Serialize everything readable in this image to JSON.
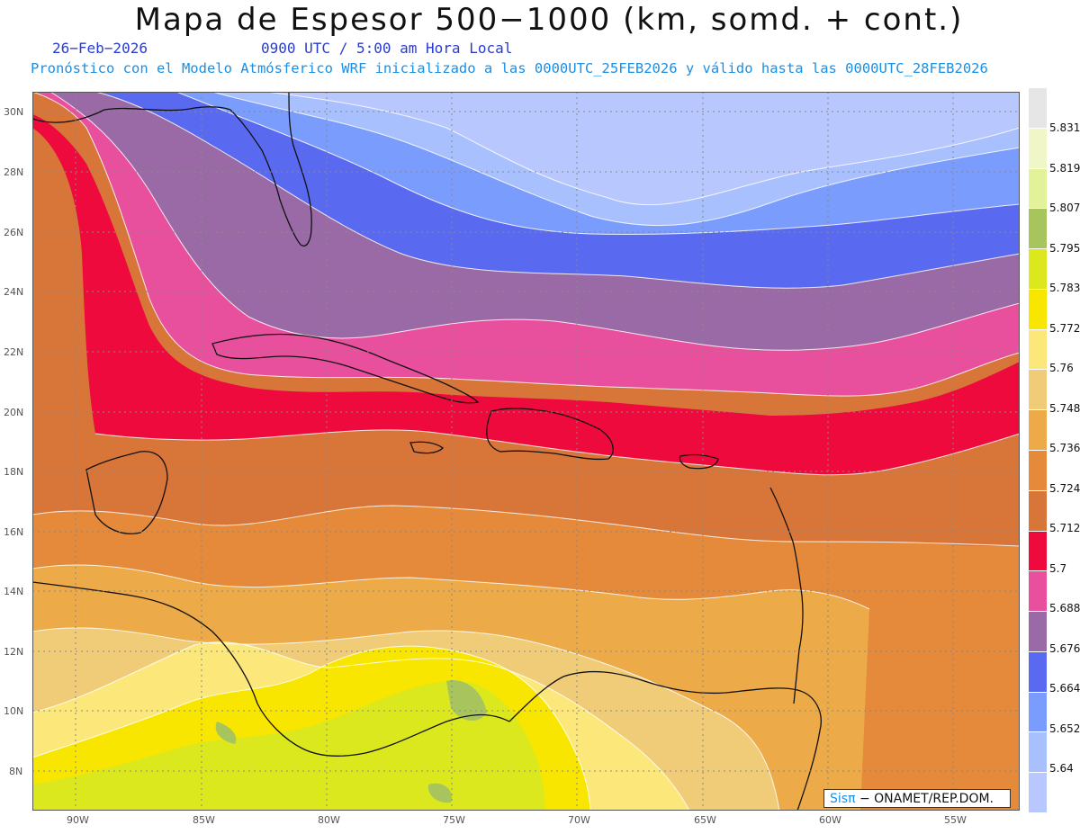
{
  "title": "Mapa de Espesor 500−1000 (km, somd. + cont.)",
  "date": "26−Feb−2026",
  "time": "0900 UTC / 5:00 am Hora Local",
  "model_info": "Pronóstico con el Modelo Atmósferico WRF inicializado a las 0000UTC_25FEB2026 y válido hasta las  0000UTC_28FEB2026",
  "credit": {
    "brand": "Sisπ",
    "org": "− ONAMET/REP.DOM."
  },
  "lat_labels": [
    "30N",
    "28N",
    "26N",
    "24N",
    "22N",
    "20N",
    "18N",
    "16N",
    "14N",
    "12N",
    "10N",
    "8N"
  ],
  "lon_labels": [
    "90W",
    "85W",
    "80W",
    "75W",
    "70W",
    "65W",
    "60W",
    "55W"
  ],
  "legend": {
    "labels": [
      "5.831",
      "5.819",
      "5.807",
      "5.795",
      "5.783",
      "5.772",
      "5.76",
      "5.748",
      "5.736",
      "5.724",
      "5.712",
      "5.7",
      "5.688",
      "5.676",
      "5.664",
      "5.652",
      "5.64"
    ],
    "colors": [
      "#e6e6e6",
      "#f0f6c8",
      "#e2f29a",
      "#a8c45c",
      "#dbe81e",
      "#f8e600",
      "#fce87a",
      "#f0cc78",
      "#ecaa48",
      "#e48a3a",
      "#d8763a",
      "#ee0a3c",
      "#e8509e",
      "#9a6aa6",
      "#5a6af0",
      "#7a9cfc",
      "#a8c0fe",
      "#b8c8fe"
    ]
  },
  "palette": {
    "band_01": "#b8c8fe",
    "band_02": "#a8c0fe",
    "band_03": "#7a9cfc",
    "band_04": "#5a6af0",
    "band_05": "#9a6aa6",
    "band_06": "#e8509e",
    "band_07": "#ee0a3c",
    "band_08": "#d8763a",
    "band_09": "#e48a3a",
    "band_10": "#ecaa48",
    "band_11": "#f0cc78",
    "band_12": "#fce87a",
    "band_13": "#f8e600",
    "band_14": "#dbe81e",
    "band_15": "#a8c45c",
    "coast": "#111111",
    "grid": "#999999"
  }
}
